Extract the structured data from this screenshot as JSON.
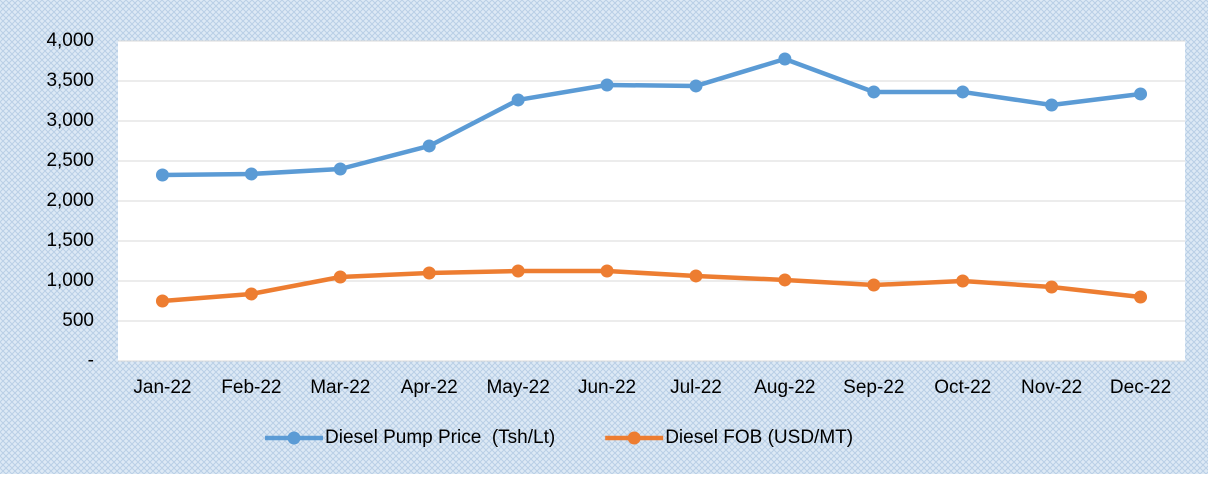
{
  "chart_data": {
    "type": "line",
    "categories": [
      "Jan-22",
      "Feb-22",
      "Mar-22",
      "Apr-22",
      "May-22",
      "Jun-22",
      "Jul-22",
      "Aug-22",
      "Sep-22",
      "Oct-22",
      "Nov-22",
      "Dec-22"
    ],
    "series": [
      {
        "name": "Diesel Pump Price  (Tsh/Lt)",
        "color": "#5b9bd5",
        "values": [
          2325,
          2338,
          2400,
          2688,
          3263,
          3450,
          3438,
          3775,
          3363,
          3363,
          3200,
          3338
        ]
      },
      {
        "name": "Diesel FOB (USD/MT)",
        "color": "#ed7d31",
        "values": [
          750,
          838,
          1050,
          1100,
          1125,
          1125,
          1063,
          1013,
          950,
          1000,
          925,
          800
        ]
      }
    ],
    "ylim": [
      0,
      4000
    ],
    "yticks": [
      {
        "value": 0,
        "label": "-"
      },
      500,
      {
        "value": 1000,
        "label": "1,000"
      },
      {
        "value": 1500,
        "label": "1,500"
      },
      {
        "value": 2000,
        "label": "2,000"
      },
      {
        "value": 2500,
        "label": "2,500"
      },
      {
        "value": 3000,
        "label": "3,000"
      },
      {
        "value": 3500,
        "label": "3,500"
      },
      {
        "value": 4000,
        "label": "4,000"
      }
    ],
    "grid": true,
    "legend": "bottom"
  }
}
